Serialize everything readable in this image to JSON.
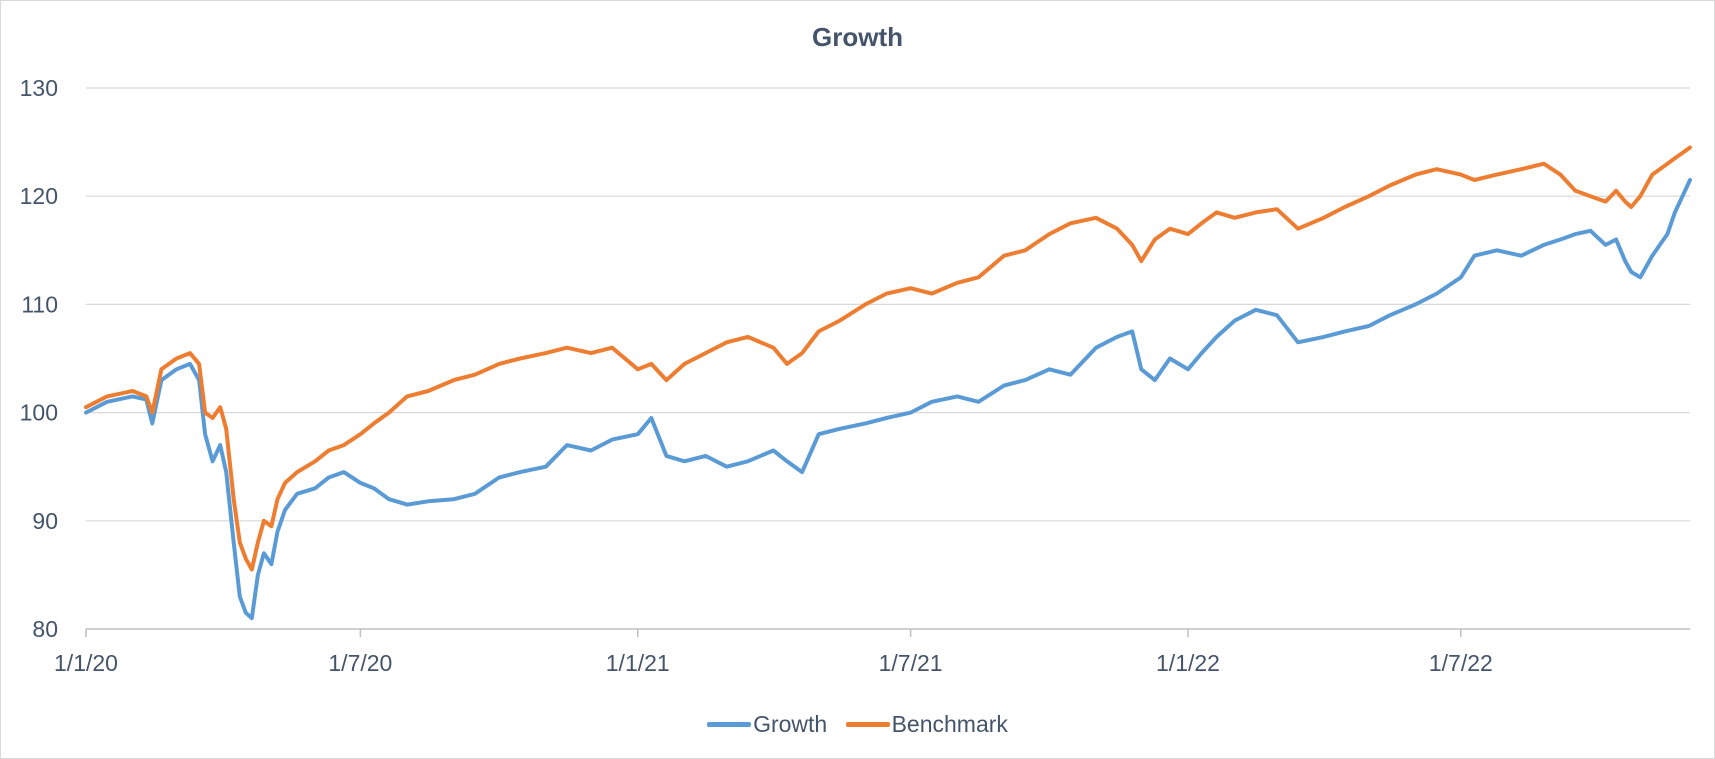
{
  "chart_data": {
    "type": "line",
    "title": "Growth",
    "xlabel": "",
    "ylabel": "",
    "ylim": [
      80,
      130
    ],
    "xlim": [
      "2020-01-01",
      "2022-11-30"
    ],
    "y_ticks": [
      "80",
      "90",
      "100",
      "110",
      "120",
      "130"
    ],
    "x_tick_labels": [
      "1/1/20",
      "1/7/20",
      "1/1/21",
      "1/7/21",
      "1/1/22",
      "1/7/22"
    ],
    "x_tick_dates": [
      "2020-01-01",
      "2020-07-01",
      "2021-01-01",
      "2021-07-01",
      "2022-01-01",
      "2022-07-01"
    ],
    "grid": "horizontal",
    "legend_position": "bottom",
    "series": [
      {
        "name": "Growth",
        "color": "#5b9bd5",
        "points": [
          [
            "2020-01-01",
            100
          ],
          [
            "2020-01-15",
            101
          ],
          [
            "2020-02-01",
            101.5
          ],
          [
            "2020-02-10",
            101.2
          ],
          [
            "2020-02-14",
            99
          ],
          [
            "2020-02-20",
            103
          ],
          [
            "2020-03-01",
            104
          ],
          [
            "2020-03-10",
            104.5
          ],
          [
            "2020-03-16",
            103
          ],
          [
            "2020-03-20",
            98
          ],
          [
            "2020-03-25",
            95.5
          ],
          [
            "2020-03-30",
            97
          ],
          [
            "2020-04-03",
            94.5
          ],
          [
            "2020-04-08",
            88
          ],
          [
            "2020-04-12",
            83
          ],
          [
            "2020-04-16",
            81.5
          ],
          [
            "2020-04-20",
            81
          ],
          [
            "2020-04-24",
            85
          ],
          [
            "2020-04-28",
            87
          ],
          [
            "2020-05-03",
            86
          ],
          [
            "2020-05-07",
            89
          ],
          [
            "2020-05-12",
            91
          ],
          [
            "2020-05-20",
            92.5
          ],
          [
            "2020-06-01",
            93
          ],
          [
            "2020-06-10",
            94
          ],
          [
            "2020-06-20",
            94.5
          ],
          [
            "2020-07-01",
            93.5
          ],
          [
            "2020-07-10",
            93
          ],
          [
            "2020-07-20",
            92
          ],
          [
            "2020-08-01",
            91.5
          ],
          [
            "2020-08-15",
            91.8
          ],
          [
            "2020-09-01",
            92
          ],
          [
            "2020-09-15",
            92.5
          ],
          [
            "2020-10-01",
            94
          ],
          [
            "2020-10-15",
            94.5
          ],
          [
            "2020-11-01",
            95
          ],
          [
            "2020-11-15",
            97
          ],
          [
            "2020-12-01",
            96.5
          ],
          [
            "2020-12-15",
            97.5
          ],
          [
            "2021-01-01",
            98
          ],
          [
            "2021-01-10",
            99.5
          ],
          [
            "2021-01-20",
            96
          ],
          [
            "2021-02-01",
            95.5
          ],
          [
            "2021-02-15",
            96
          ],
          [
            "2021-03-01",
            95
          ],
          [
            "2021-03-15",
            95.5
          ],
          [
            "2021-04-01",
            96.5
          ],
          [
            "2021-04-10",
            95.5
          ],
          [
            "2021-04-20",
            94.5
          ],
          [
            "2021-05-01",
            98
          ],
          [
            "2021-05-15",
            98.5
          ],
          [
            "2021-06-01",
            99
          ],
          [
            "2021-06-15",
            99.5
          ],
          [
            "2021-07-01",
            100
          ],
          [
            "2021-07-15",
            101
          ],
          [
            "2021-08-01",
            101.5
          ],
          [
            "2021-08-15",
            101
          ],
          [
            "2021-09-01",
            102.5
          ],
          [
            "2021-09-15",
            103
          ],
          [
            "2021-10-01",
            104
          ],
          [
            "2021-10-15",
            103.5
          ],
          [
            "2021-11-01",
            106
          ],
          [
            "2021-11-15",
            107
          ],
          [
            "2021-11-25",
            107.5
          ],
          [
            "2021-12-01",
            104
          ],
          [
            "2021-12-10",
            103
          ],
          [
            "2021-12-20",
            105
          ],
          [
            "2022-01-01",
            104
          ],
          [
            "2022-01-10",
            105.5
          ],
          [
            "2022-01-20",
            107
          ],
          [
            "2022-02-01",
            108.5
          ],
          [
            "2022-02-15",
            109.5
          ],
          [
            "2022-03-01",
            109
          ],
          [
            "2022-03-15",
            106.5
          ],
          [
            "2022-04-01",
            107
          ],
          [
            "2022-04-15",
            107.5
          ],
          [
            "2022-05-01",
            108
          ],
          [
            "2022-05-15",
            109
          ],
          [
            "2022-06-01",
            110
          ],
          [
            "2022-06-15",
            111
          ],
          [
            "2022-07-01",
            112.5
          ],
          [
            "2022-07-10",
            114.5
          ],
          [
            "2022-07-25",
            115
          ],
          [
            "2022-08-10",
            114.5
          ],
          [
            "2022-08-25",
            115.5
          ],
          [
            "2022-09-05",
            116
          ],
          [
            "2022-09-15",
            116.5
          ],
          [
            "2022-09-25",
            116.8
          ],
          [
            "2022-10-05",
            115.5
          ],
          [
            "2022-10-12",
            116
          ],
          [
            "2022-10-18",
            114
          ],
          [
            "2022-10-22",
            113
          ],
          [
            "2022-10-28",
            112.5
          ],
          [
            "2022-11-01",
            113.5
          ],
          [
            "2022-11-05",
            114.5
          ],
          [
            "2022-11-10",
            115.5
          ],
          [
            "2022-11-15",
            116.5
          ],
          [
            "2022-11-20",
            118.5
          ],
          [
            "2022-11-25",
            120
          ],
          [
            "2022-11-30",
            121.5
          ]
        ]
      },
      {
        "name": "Benchmark",
        "color": "#ed7d31",
        "points": [
          [
            "2020-01-01",
            100.5
          ],
          [
            "2020-01-15",
            101.5
          ],
          [
            "2020-02-01",
            102
          ],
          [
            "2020-02-10",
            101.5
          ],
          [
            "2020-02-14",
            100
          ],
          [
            "2020-02-20",
            104
          ],
          [
            "2020-03-01",
            105
          ],
          [
            "2020-03-10",
            105.5
          ],
          [
            "2020-03-16",
            104.5
          ],
          [
            "2020-03-20",
            100
          ],
          [
            "2020-03-25",
            99.5
          ],
          [
            "2020-03-30",
            100.5
          ],
          [
            "2020-04-03",
            98.5
          ],
          [
            "2020-04-08",
            92
          ],
          [
            "2020-04-12",
            88
          ],
          [
            "2020-04-16",
            86.5
          ],
          [
            "2020-04-20",
            85.5
          ],
          [
            "2020-04-24",
            88
          ],
          [
            "2020-04-28",
            90
          ],
          [
            "2020-05-03",
            89.5
          ],
          [
            "2020-05-07",
            92
          ],
          [
            "2020-05-12",
            93.5
          ],
          [
            "2020-05-20",
            94.5
          ],
          [
            "2020-06-01",
            95.5
          ],
          [
            "2020-06-10",
            96.5
          ],
          [
            "2020-06-20",
            97
          ],
          [
            "2020-07-01",
            98
          ],
          [
            "2020-07-10",
            99
          ],
          [
            "2020-07-20",
            100
          ],
          [
            "2020-08-01",
            101.5
          ],
          [
            "2020-08-15",
            102
          ],
          [
            "2020-09-01",
            103
          ],
          [
            "2020-09-15",
            103.5
          ],
          [
            "2020-10-01",
            104.5
          ],
          [
            "2020-10-15",
            105
          ],
          [
            "2020-11-01",
            105.5
          ],
          [
            "2020-11-15",
            106
          ],
          [
            "2020-12-01",
            105.5
          ],
          [
            "2020-12-15",
            106
          ],
          [
            "2021-01-01",
            104
          ],
          [
            "2021-01-10",
            104.5
          ],
          [
            "2021-01-20",
            103
          ],
          [
            "2021-02-01",
            104.5
          ],
          [
            "2021-02-15",
            105.5
          ],
          [
            "2021-03-01",
            106.5
          ],
          [
            "2021-03-15",
            107
          ],
          [
            "2021-04-01",
            106
          ],
          [
            "2021-04-10",
            104.5
          ],
          [
            "2021-04-20",
            105.5
          ],
          [
            "2021-05-01",
            107.5
          ],
          [
            "2021-05-15",
            108.5
          ],
          [
            "2021-06-01",
            110
          ],
          [
            "2021-06-15",
            111
          ],
          [
            "2021-07-01",
            111.5
          ],
          [
            "2021-07-15",
            111
          ],
          [
            "2021-08-01",
            112
          ],
          [
            "2021-08-15",
            112.5
          ],
          [
            "2021-09-01",
            114.5
          ],
          [
            "2021-09-15",
            115
          ],
          [
            "2021-10-01",
            116.5
          ],
          [
            "2021-10-15",
            117.5
          ],
          [
            "2021-11-01",
            118
          ],
          [
            "2021-11-15",
            117
          ],
          [
            "2021-11-25",
            115.5
          ],
          [
            "2021-12-01",
            114
          ],
          [
            "2021-12-10",
            116
          ],
          [
            "2021-12-20",
            117
          ],
          [
            "2022-01-01",
            116.5
          ],
          [
            "2022-01-10",
            117.5
          ],
          [
            "2022-01-20",
            118.5
          ],
          [
            "2022-02-01",
            118
          ],
          [
            "2022-02-15",
            118.5
          ],
          [
            "2022-03-01",
            118.8
          ],
          [
            "2022-03-15",
            117
          ],
          [
            "2022-04-01",
            118
          ],
          [
            "2022-04-15",
            119
          ],
          [
            "2022-05-01",
            120
          ],
          [
            "2022-05-15",
            121
          ],
          [
            "2022-06-01",
            122
          ],
          [
            "2022-06-15",
            122.5
          ],
          [
            "2022-07-01",
            122
          ],
          [
            "2022-07-10",
            121.5
          ],
          [
            "2022-07-25",
            122
          ],
          [
            "2022-08-10",
            122.5
          ],
          [
            "2022-08-25",
            123
          ],
          [
            "2022-09-05",
            122
          ],
          [
            "2022-09-15",
            120.5
          ],
          [
            "2022-09-25",
            120
          ],
          [
            "2022-10-05",
            119.5
          ],
          [
            "2022-10-12",
            120.5
          ],
          [
            "2022-10-18",
            119.5
          ],
          [
            "2022-10-22",
            119
          ],
          [
            "2022-10-28",
            120
          ],
          [
            "2022-11-01",
            121
          ],
          [
            "2022-11-05",
            122
          ],
          [
            "2022-11-10",
            122.5
          ],
          [
            "2022-11-15",
            123
          ],
          [
            "2022-11-20",
            123.5
          ],
          [
            "2022-11-25",
            124
          ],
          [
            "2022-11-30",
            124.5
          ]
        ]
      }
    ]
  }
}
